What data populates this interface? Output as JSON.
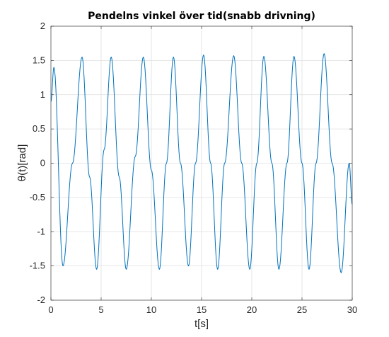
{
  "chart_data": {
    "type": "line",
    "title": "Pendelns vinkel över tid(snabb drivning)",
    "xlabel": "t[s]",
    "ylabel": "θ(t)[rad]",
    "xlim": [
      0,
      30
    ],
    "ylim": [
      -2,
      2
    ],
    "x_ticks": [
      "0",
      "5",
      "10",
      "15",
      "20",
      "25",
      "30"
    ],
    "y_ticks": [
      "-2",
      "-1.5",
      "-1",
      "-0.5",
      "0",
      "0.5",
      "1",
      "1.5",
      "2"
    ],
    "grid": true,
    "series": [
      {
        "color": "#0072bd",
        "x": [
          0,
          0.3,
          1.2,
          2.15,
          3.1,
          3.85,
          4.55,
          5.3,
          6.0,
          6.8,
          7.5,
          8.4,
          9.2,
          10.0,
          10.8,
          11.5,
          12.2,
          12.9,
          13.7,
          14.4,
          15.2,
          15.9,
          16.6,
          17.3,
          18.2,
          19.0,
          19.8,
          20.5,
          21.2,
          22.0,
          22.7,
          23.5,
          24.2,
          25.0,
          25.7,
          26.4,
          27.2,
          28.0,
          28.9,
          29.7,
          30.0
        ],
        "y": [
          0.9,
          1.4,
          -1.5,
          0.0,
          1.55,
          -0.2,
          -1.55,
          0.2,
          1.55,
          -0.2,
          -1.55,
          0.1,
          1.55,
          -0.1,
          -1.55,
          0.0,
          1.55,
          0.0,
          -1.5,
          0.0,
          1.58,
          0.0,
          -1.55,
          0.0,
          1.57,
          0.0,
          -1.55,
          0.0,
          1.56,
          0.0,
          -1.55,
          0.0,
          1.56,
          0.0,
          -1.55,
          0.0,
          1.6,
          0.0,
          -1.6,
          0.0,
          -0.6
        ]
      }
    ]
  }
}
